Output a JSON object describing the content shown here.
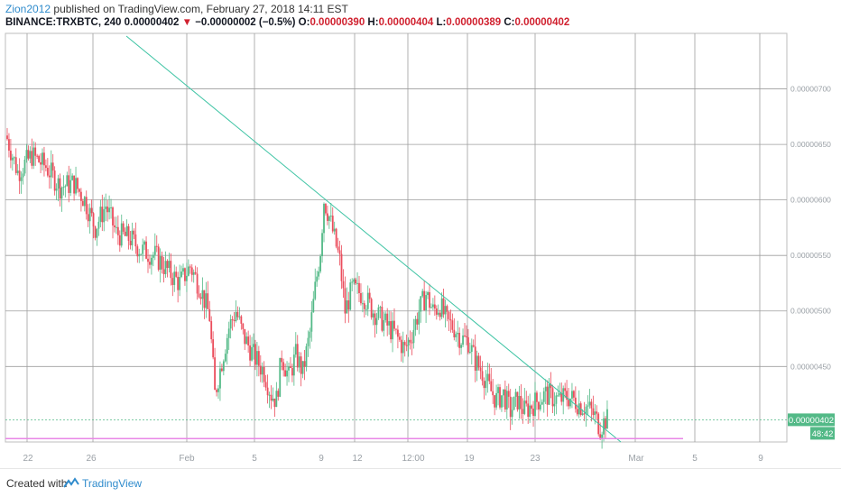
{
  "header": {
    "author": "Zion2012",
    "published": "published on TradingView.com, February 27, 2018 14:11 EST",
    "symbol": "BINANCE:TRXBTC, 240",
    "last": "0.00000402",
    "arrow": "▼",
    "change": "−0.00000002 (−0.5%)",
    "open_label": "O:",
    "open": "0.00000390",
    "high_label": "H:",
    "high": "0.00000404",
    "low_label": "L:",
    "low": "0.00000389",
    "close_label": "C:",
    "close": "0.00000402"
  },
  "price_tag": {
    "value": "0.00000402",
    "countdown": "48:42"
  },
  "footer": {
    "created": "Created with",
    "brand": "TradingView",
    "logo_icon": "tradingview-logo-icon"
  },
  "colors": {
    "up": "#53b987",
    "down": "#eb4d5c",
    "trendline": "#3cc3a3",
    "support": "#e986e6",
    "tag": "#53b987",
    "grid": "#9e9e9e"
  },
  "chart_data": {
    "type": "candlestick",
    "symbol": "BINANCE:TRXBTC",
    "interval": "240",
    "y_ticks": [
      "0.00000700",
      "0.00000650",
      "0.00000600",
      "0.00000550",
      "0.00000500",
      "0.00000450"
    ],
    "ylim": [
      3.82e-06,
      7.5e-06
    ],
    "x_ticks": [
      "22",
      "26",
      "Feb",
      "5",
      "9",
      "12",
      "12:00",
      "19",
      "23",
      "Mar",
      "5",
      "9"
    ],
    "trendline": {
      "from": {
        "x": "Jan 17",
        "y": 8e-06
      },
      "to": {
        "x": "Feb 28",
        "y": 3.82e-06
      }
    },
    "support_line": 3.85e-06,
    "last_price": 4.02e-06,
    "close_path": [
      [
        0,
        6.55e-06
      ],
      [
        6,
        6.25e-06
      ],
      [
        14,
        6.4e-06
      ],
      [
        22,
        6.3e-06
      ],
      [
        30,
        6.12e-06
      ],
      [
        38,
        6.15e-06
      ],
      [
        44,
        6e-06
      ],
      [
        50,
        5.75e-06
      ],
      [
        56,
        5.95e-06
      ],
      [
        62,
        5.7e-06
      ],
      [
        70,
        5.65e-06
      ],
      [
        76,
        5.55e-06
      ],
      [
        84,
        5.5e-06
      ],
      [
        92,
        5.35e-06
      ],
      [
        98,
        5.25e-06
      ],
      [
        104,
        5.4e-06
      ],
      [
        110,
        5.2e-06
      ],
      [
        115,
        4.95e-06
      ],
      [
        118,
        4.25e-06
      ],
      [
        122,
        4.55e-06
      ],
      [
        126,
        4.85e-06
      ],
      [
        130,
        5e-06
      ],
      [
        134,
        4.78e-06
      ],
      [
        140,
        4.6e-06
      ],
      [
        146,
        4.45e-06
      ],
      [
        150,
        4.25e-06
      ],
      [
        153,
        4.2e-06
      ],
      [
        156,
        4.6e-06
      ],
      [
        160,
        4.4e-06
      ],
      [
        164,
        4.6e-06
      ],
      [
        168,
        4.45e-06
      ],
      [
        172,
        4.8e-06
      ],
      [
        175,
        5.2e-06
      ],
      [
        178,
        5.55e-06
      ],
      [
        180,
        6e-06
      ],
      [
        183,
        5.85e-06
      ],
      [
        186,
        5.65e-06
      ],
      [
        189,
        5.45e-06
      ],
      [
        192,
        5e-06
      ],
      [
        196,
        5.2e-06
      ],
      [
        202,
        5.15e-06
      ],
      [
        208,
        5e-06
      ],
      [
        214,
        4.9e-06
      ],
      [
        220,
        4.8e-06
      ],
      [
        226,
        4.65e-06
      ],
      [
        230,
        4.8e-06
      ],
      [
        234,
        5e-06
      ],
      [
        238,
        5.15e-06
      ],
      [
        242,
        5e-06
      ],
      [
        246,
        5.05e-06
      ],
      [
        250,
        4.9e-06
      ],
      [
        254,
        4.85e-06
      ],
      [
        258,
        4.75e-06
      ],
      [
        262,
        4.73e-06
      ],
      [
        266,
        4.55e-06
      ],
      [
        270,
        4.45e-06
      ],
      [
        274,
        4.3e-06
      ],
      [
        278,
        4.2e-06
      ],
      [
        282,
        4.25e-06
      ],
      [
        286,
        4.1e-06
      ],
      [
        290,
        4.2e-06
      ],
      [
        294,
        4.1e-06
      ],
      [
        298,
        4.15e-06
      ],
      [
        302,
        4.2e-06
      ],
      [
        306,
        4.25e-06
      ],
      [
        310,
        4.22e-06
      ],
      [
        314,
        4.2e-06
      ],
      [
        318,
        4.23e-06
      ],
      [
        322,
        4.2e-06
      ],
      [
        326,
        4.15e-06
      ],
      [
        330,
        4.13e-06
      ],
      [
        334,
        4.05e-06
      ],
      [
        337,
        3.95e-06
      ],
      [
        340,
        4.02e-06
      ]
    ]
  }
}
